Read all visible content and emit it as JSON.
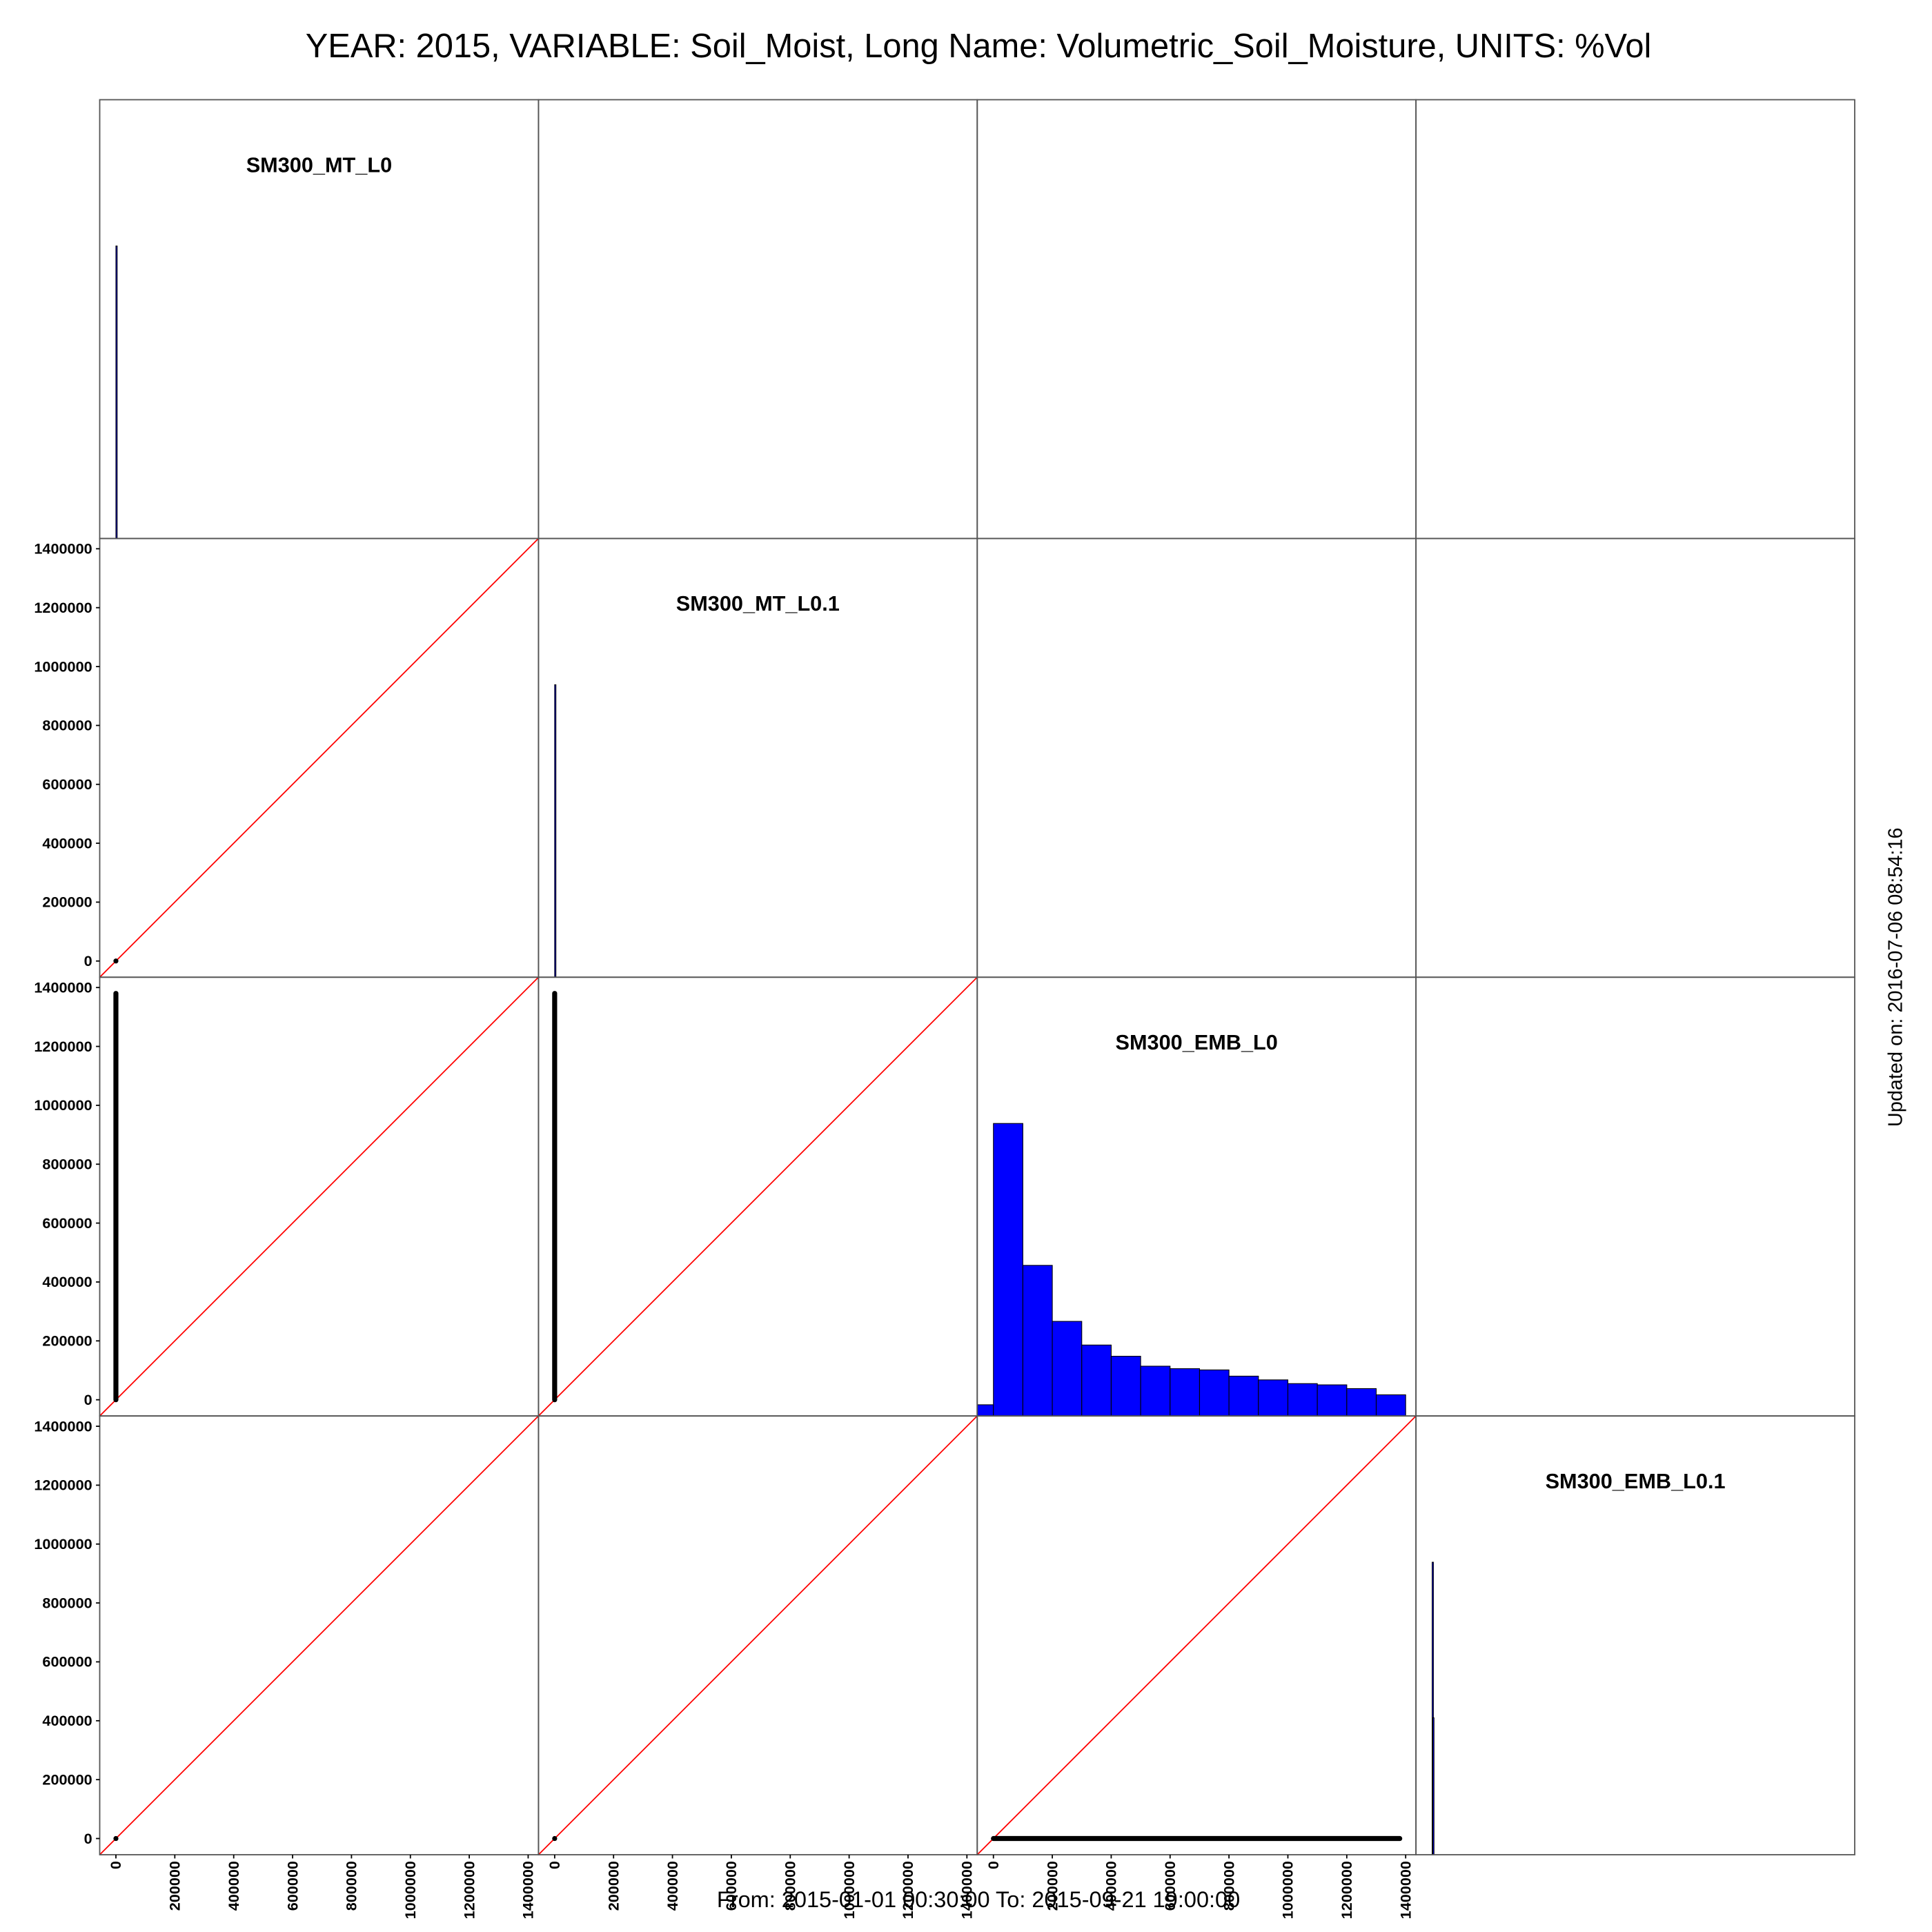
{
  "chart_data": {
    "type": "pairs",
    "title": "YEAR: 2015, VARIABLE: Soil_Moist, Long Name: Volumetric_Soil_Moisture, UNITS: %Vol",
    "footer": "From: 2015-01-01 00:30:00 To: 2015-09-21 19:00:00",
    "side_note": "Updated on: 2016-07-06 08:54:16",
    "xlim": [
      -55000,
      1435000
    ],
    "ylim": [
      -55000,
      1435000
    ],
    "xticks": [
      0,
      200000,
      400000,
      600000,
      800000,
      1000000,
      1200000,
      1400000
    ],
    "yticks": [
      0,
      200000,
      400000,
      600000,
      800000,
      1000000,
      1200000,
      1400000
    ],
    "reference_line_color": "#ff0000",
    "hist_color": "#0000ff",
    "point_color": "#000000",
    "variables": [
      {
        "name": "SM300_MT_L0",
        "bins": [
          0,
          2000
        ],
        "counts": [
          235
        ]
      },
      {
        "name": "SM300_MT_L0.1",
        "bins": [
          0,
          2000
        ],
        "counts": [
          235
        ]
      },
      {
        "name": "SM300_EMB_L0",
        "bins": [
          -100000,
          0,
          100000,
          200000,
          300000,
          400000,
          500000,
          600000,
          700000,
          800000,
          900000,
          1000000,
          1100000,
          1200000,
          1300000,
          1400000
        ],
        "counts": [
          9,
          235,
          121,
          76,
          57,
          48,
          40,
          38,
          37,
          32,
          29,
          26,
          25,
          22,
          17
        ]
      },
      {
        "name": "SM300_EMB_L0.1",
        "bins": [
          0,
          2000,
          4000
        ],
        "counts": [
          235,
          110
        ]
      }
    ],
    "scatter": [
      [
        null,
        null,
        null,
        null
      ],
      [
        {
          "x": [
            0
          ],
          "y": [
            0
          ]
        },
        null,
        null,
        null
      ],
      [
        {
          "x": [
            0,
            0
          ],
          "y": [
            0,
            1380000
          ]
        },
        {
          "x": [
            0,
            0
          ],
          "y": [
            0,
            1380000
          ]
        },
        null,
        null
      ],
      [
        {
          "x": [
            0
          ],
          "y": [
            0
          ]
        },
        {
          "x": [
            0
          ],
          "y": [
            0
          ]
        },
        {
          "x": [
            0,
            1380000
          ],
          "y": [
            0,
            0
          ]
        },
        null
      ]
    ]
  }
}
